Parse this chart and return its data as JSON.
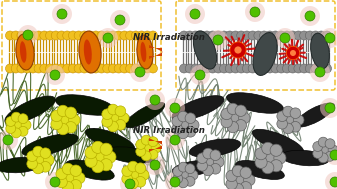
{
  "fig_width": 3.37,
  "fig_height": 1.89,
  "dpi": 100,
  "bg_color": "#ffffff",
  "arrow_text": "NIR Irradiation",
  "arrow_text_fontsize": 6.2,
  "arrow_color_main": "#d04000",
  "arrow_color_yellow": "#f5a000",
  "dashed_box_color": "#f0c030",
  "nano_yellow": "#e0e020",
  "nano_yellow_ec": "#b8b000",
  "nano_green": "#50c000",
  "nano_green_ec": "#308000",
  "nano_pink_halo": "#f0c8c0",
  "nano_gray": "#a0a0a0",
  "nano_gray_ec": "#606060",
  "membrane_yellow_head": "#f0c020",
  "membrane_yellow_head_ec": "#c89000",
  "membrane_yellow_tail": "#c89000",
  "membrane_gray_head": "#909090",
  "membrane_gray_head_ec": "#606060",
  "membrane_gray_tail": "#707070",
  "protein_orange": "#e07000",
  "protein_red_stripe": "#cc2000",
  "protein_dark": "#404848",
  "explosion_red": "#cc0000",
  "explosion_orange": "#ff6600",
  "bacteria_green_dark": "#0a1a02",
  "bacteria_flagella_green": "#406020",
  "bacteria_gray_dark": "#1a1a1a",
  "bacteria_flagella_gray": "#708070"
}
